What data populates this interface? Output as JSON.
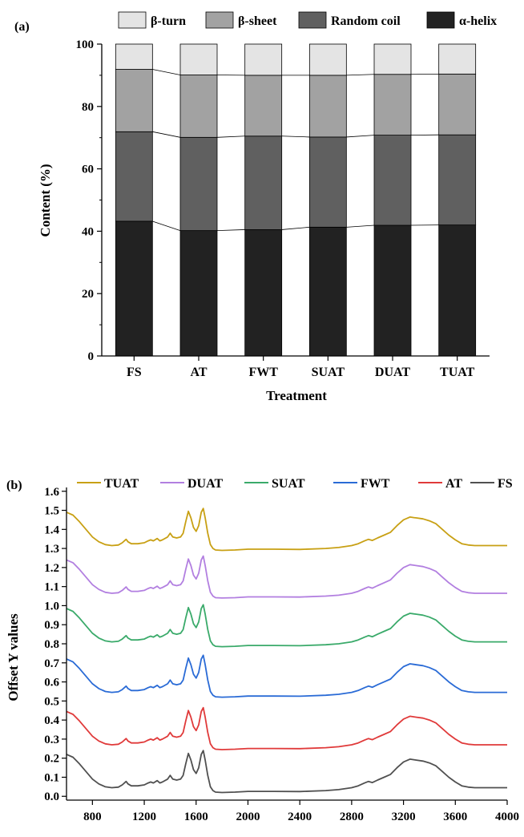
{
  "chart_data": [
    {
      "type": "bar",
      "stacked": true,
      "panel_label": "(a)",
      "title": "",
      "xlabel": "Treatment",
      "ylabel": "Content (%)",
      "ylim": [
        0,
        100
      ],
      "yticks": [
        0,
        20,
        40,
        60,
        80,
        100
      ],
      "categories": [
        "FS",
        "AT",
        "FWT",
        "SUAT",
        "DUAT",
        "TUAT"
      ],
      "series": [
        {
          "name": "α-helix",
          "color": "#222222",
          "values": [
            43.2,
            40.2,
            40.5,
            41.3,
            41.9,
            42.0
          ]
        },
        {
          "name": "Random coil",
          "color": "#606060",
          "values": [
            28.7,
            29.9,
            30.0,
            28.9,
            28.9,
            28.9
          ]
        },
        {
          "name": "β-sheet",
          "color": "#a2a2a2",
          "values": [
            20.0,
            20.0,
            19.5,
            19.8,
            19.5,
            19.5
          ]
        },
        {
          "name": "β-turn",
          "color": "#e4e4e4",
          "values": [
            8.1,
            9.9,
            10.0,
            10.0,
            9.7,
            9.6
          ]
        }
      ],
      "legend_order": [
        "β-turn",
        "β-sheet",
        "Random coil",
        "α-helix"
      ],
      "legend_position": "top",
      "connector_lines": true,
      "grid": false
    },
    {
      "type": "line",
      "panel_label": "(b)",
      "title": "",
      "xlabel": "",
      "ylabel": "Offset Y values",
      "xlim": [
        600,
        4000
      ],
      "ylim": [
        -0.02,
        1.62
      ],
      "xticks": [
        800,
        1200,
        1600,
        2000,
        2400,
        2800,
        3200,
        3600,
        4000
      ],
      "yticks": [
        0.0,
        0.1,
        0.2,
        0.3,
        0.4,
        0.5,
        0.6,
        0.7,
        0.8,
        0.9,
        1.0,
        1.1,
        1.2,
        1.3,
        1.4,
        1.5,
        1.6
      ],
      "ytick_labels": [
        "0.0",
        "0.1",
        "0.2",
        "0.3",
        "0.4",
        "0.5",
        "0.6",
        "0.7",
        "0.8",
        "0.9",
        "1.0",
        "1.1",
        "1.2",
        "1.3",
        "1.4",
        "1.5",
        "1.6"
      ],
      "legend_position": "top",
      "grid": false,
      "x": [
        600,
        650,
        700,
        750,
        800,
        850,
        900,
        950,
        1000,
        1030,
        1060,
        1075,
        1100,
        1150,
        1200,
        1230,
        1250,
        1270,
        1300,
        1320,
        1340,
        1380,
        1400,
        1420,
        1450,
        1480,
        1500,
        1520,
        1540,
        1560,
        1580,
        1600,
        1620,
        1640,
        1655,
        1670,
        1690,
        1710,
        1730,
        1750,
        1800,
        1900,
        2000,
        2200,
        2400,
        2600,
        2700,
        2800,
        2850,
        2900,
        2930,
        2960,
        3000,
        3050,
        3100,
        3150,
        3200,
        3250,
        3280,
        3300,
        3350,
        3400,
        3450,
        3500,
        3550,
        3600,
        3650,
        3700,
        3750,
        3800,
        4000
      ],
      "base_profile": [
        0.22,
        0.205,
        0.17,
        0.13,
        0.09,
        0.065,
        0.05,
        0.045,
        0.048,
        0.06,
        0.078,
        0.065,
        0.055,
        0.055,
        0.06,
        0.07,
        0.075,
        0.07,
        0.082,
        0.07,
        0.075,
        0.09,
        0.11,
        0.09,
        0.085,
        0.09,
        0.11,
        0.17,
        0.225,
        0.19,
        0.14,
        0.12,
        0.15,
        0.22,
        0.24,
        0.19,
        0.11,
        0.05,
        0.03,
        0.022,
        0.02,
        0.022,
        0.026,
        0.026,
        0.025,
        0.03,
        0.035,
        0.045,
        0.055,
        0.07,
        0.078,
        0.072,
        0.085,
        0.1,
        0.115,
        0.15,
        0.18,
        0.195,
        0.192,
        0.19,
        0.185,
        0.175,
        0.16,
        0.13,
        0.1,
        0.075,
        0.055,
        0.048,
        0.045,
        0.045,
        0.045
      ],
      "series": [
        {
          "name": "TUAT",
          "color": "#c8a014",
          "offset": 1.27
        },
        {
          "name": "DUAT",
          "color": "#b27fe0",
          "offset": 1.02
        },
        {
          "name": "SUAT",
          "color": "#3aaa6a",
          "offset": 0.765
        },
        {
          "name": "FWT",
          "color": "#2a6bd6",
          "offset": 0.5
        },
        {
          "name": "AT",
          "color": "#e03a3a",
          "offset": 0.225
        },
        {
          "name": "FS",
          "color": "#505050",
          "offset": 0.0
        }
      ]
    }
  ]
}
